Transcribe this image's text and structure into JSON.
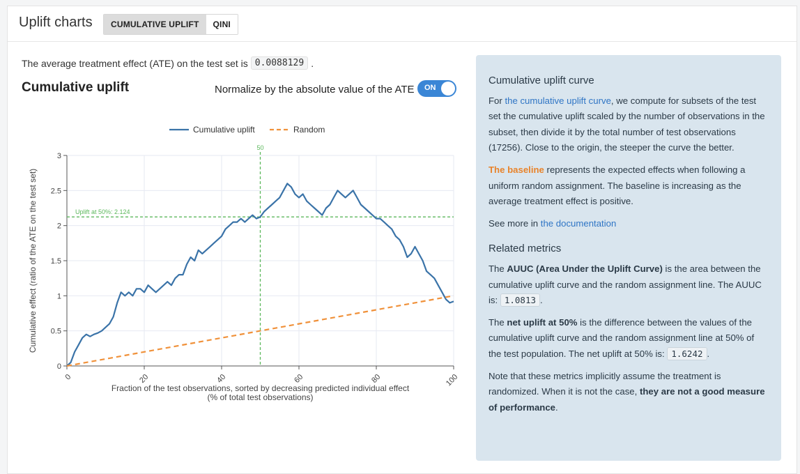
{
  "header": {
    "title": "Uplift charts",
    "tabs": [
      {
        "label": "CUMULATIVE UPLIFT",
        "active": true
      },
      {
        "label": "QINI",
        "active": false
      }
    ]
  },
  "ate": {
    "text": "The average treatment effect (ATE) on the test set is",
    "value": "0.0088129",
    "suffix": "."
  },
  "chart_section": {
    "title": "Cumulative uplift",
    "normalize_label": "Normalize by the absolute value of the ATE",
    "toggle_label": "ON",
    "toggle_on": true
  },
  "chart_data": {
    "type": "line",
    "xlabel": "Fraction of the test observations, sorted by decreasing predicted individual effect",
    "xlabel_sub": "(% of total test observations)",
    "ylabel": "Cumulative effect (ratio of the ATE on the test set)",
    "xlim": [
      0,
      100
    ],
    "ylim": [
      0,
      3
    ],
    "xticks": [
      0,
      20,
      40,
      60,
      80,
      100
    ],
    "yticks": [
      0,
      0.5,
      1,
      1.5,
      2,
      2.5,
      3
    ],
    "ytick_labels": [
      "0",
      "0.5",
      "1",
      "1.5",
      "2",
      "2.5",
      "3"
    ],
    "grid": true,
    "legend_position": "top",
    "vline": {
      "x": 50,
      "label": "50",
      "color": "#5cb85c"
    },
    "hline": {
      "y": 2.124,
      "label": "Uplift at 50%: 2.124",
      "color": "#5cb85c"
    },
    "series": [
      {
        "name": "Cumulative uplift",
        "color": "#3a73a8",
        "style": "solid",
        "x": [
          0,
          1,
          2,
          3,
          4,
          5,
          6,
          7,
          8,
          9,
          10,
          11,
          12,
          13,
          14,
          15,
          16,
          17,
          18,
          19,
          20,
          21,
          22,
          23,
          24,
          25,
          26,
          27,
          28,
          29,
          30,
          31,
          32,
          33,
          34,
          35,
          36,
          37,
          38,
          39,
          40,
          41,
          42,
          43,
          44,
          45,
          46,
          47,
          48,
          49,
          50,
          51,
          52,
          53,
          54,
          55,
          56,
          57,
          58,
          59,
          60,
          61,
          62,
          63,
          64,
          65,
          66,
          67,
          68,
          69,
          70,
          71,
          72,
          73,
          74,
          75,
          76,
          77,
          78,
          79,
          80,
          81,
          82,
          83,
          84,
          85,
          86,
          87,
          88,
          89,
          90,
          91,
          92,
          93,
          94,
          95,
          96,
          97,
          98,
          99,
          100
        ],
        "y": [
          0,
          0.05,
          0.2,
          0.3,
          0.4,
          0.45,
          0.42,
          0.45,
          0.47,
          0.5,
          0.55,
          0.6,
          0.7,
          0.9,
          1.05,
          1.0,
          1.05,
          1.0,
          1.1,
          1.1,
          1.05,
          1.15,
          1.1,
          1.05,
          1.1,
          1.15,
          1.2,
          1.15,
          1.25,
          1.3,
          1.3,
          1.45,
          1.55,
          1.5,
          1.65,
          1.6,
          1.65,
          1.7,
          1.75,
          1.8,
          1.85,
          1.95,
          2.0,
          2.05,
          2.05,
          2.1,
          2.05,
          2.1,
          2.15,
          2.1,
          2.124,
          2.2,
          2.25,
          2.3,
          2.35,
          2.4,
          2.5,
          2.6,
          2.55,
          2.45,
          2.4,
          2.45,
          2.35,
          2.3,
          2.25,
          2.2,
          2.15,
          2.25,
          2.3,
          2.4,
          2.5,
          2.45,
          2.4,
          2.45,
          2.5,
          2.4,
          2.3,
          2.25,
          2.2,
          2.15,
          2.1,
          2.1,
          2.05,
          2.0,
          1.95,
          1.85,
          1.8,
          1.7,
          1.55,
          1.6,
          1.7,
          1.6,
          1.5,
          1.35,
          1.3,
          1.25,
          1.15,
          1.05,
          0.95,
          0.9,
          0.92
        ]
      },
      {
        "name": "Random",
        "color": "#f0913a",
        "style": "dashed",
        "x": [
          0,
          100
        ],
        "y": [
          0,
          1
        ]
      }
    ]
  },
  "panel": {
    "curve_heading": "Cumulative uplift curve",
    "curve_p_pre": "For ",
    "curve_link": "the cumulative uplift curve",
    "curve_p_post": ", we compute for subsets of the test set the cumulative uplift scaled by the number of observations in the subset, then divide it by the total number of test observations (17256). Close to the origin, the steeper the curve the better.",
    "baseline_label": "The baseline",
    "baseline_text": " represents the expected effects when following a uniform random assignment. The baseline is increasing as the average treatment effect is positive.",
    "see_more_pre": "See more in ",
    "see_more_link": "the documentation",
    "related_heading": "Related metrics",
    "auuc_pre": "The ",
    "auuc_bold": "AUUC (Area Under the Uplift Curve)",
    "auuc_post": " is the area between the cumulative uplift curve and the random assignment line. The AUUC is: ",
    "auuc_value": "1.0813",
    "auuc_end": ".",
    "net_pre": "The ",
    "net_bold": "net uplift at 50%",
    "net_post": " is the difference between the values of the cumulative uplift curve and the random assignment line at 50% of the test population. The net uplift at 50% is: ",
    "net_value": "1.6242",
    "net_end": ".",
    "note_pre": "Note that these metrics implicitly assume the treatment is randomized. When it is not the case, ",
    "note_bold": "they are not a good measure of performance",
    "note_end": "."
  }
}
